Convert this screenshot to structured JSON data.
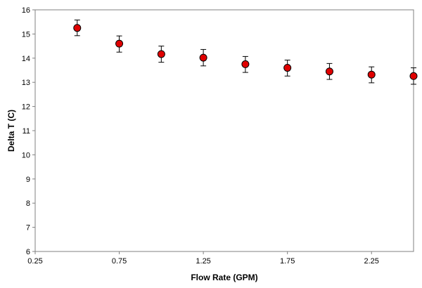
{
  "chart_data": {
    "type": "scatter",
    "title": "",
    "xlabel": "Flow Rate (GPM)",
    "ylabel": "Delta T (C)",
    "xlim": [
      0.25,
      2.5
    ],
    "ylim": [
      6,
      16
    ],
    "xticks": [
      0.25,
      0.75,
      1.25,
      1.75,
      2.25
    ],
    "xtick_labels": [
      "0.25",
      "0.75",
      "1.25",
      "1.75",
      "2.25"
    ],
    "yticks": [
      6,
      7,
      8,
      9,
      10,
      11,
      12,
      13,
      14,
      15,
      16
    ],
    "ytick_labels": [
      "6",
      "7",
      "8",
      "9",
      "10",
      "11",
      "12",
      "13",
      "14",
      "15",
      "16"
    ],
    "grid": false,
    "legend": "none",
    "marker_color": "#e00000",
    "series": [
      {
        "x": [
          0.5,
          0.75,
          1.0,
          1.25,
          1.5,
          1.75,
          2.0,
          2.25,
          2.5
        ],
        "y": [
          15.25,
          14.6,
          14.17,
          14.02,
          13.75,
          13.6,
          13.45,
          13.32,
          13.26
        ],
        "error_low": [
          14.93,
          14.25,
          13.83,
          13.68,
          13.41,
          13.26,
          13.12,
          12.98,
          12.92
        ],
        "error_high": [
          15.58,
          14.92,
          14.5,
          14.36,
          14.07,
          13.92,
          13.78,
          13.64,
          13.6
        ]
      }
    ]
  }
}
